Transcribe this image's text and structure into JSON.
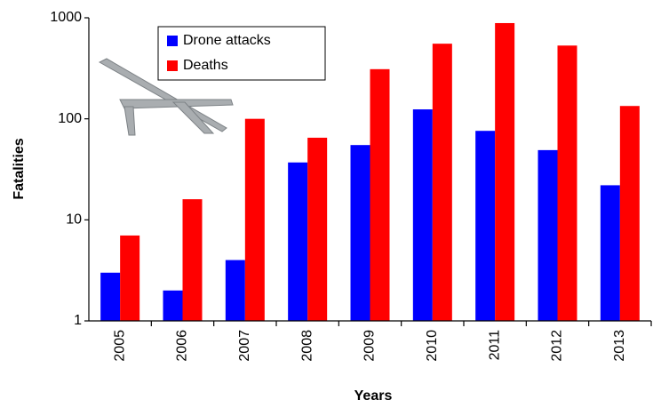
{
  "chart_data": {
    "type": "bar",
    "x_label": "Years",
    "y_label": "Fatalities",
    "categories": [
      "2005",
      "2006",
      "2007",
      "2008",
      "2009",
      "2010",
      "2011",
      "2012",
      "2013"
    ],
    "series": [
      {
        "name": "Drone attacks",
        "color": "#0000ff",
        "values": [
          3,
          2,
          4,
          37,
          55,
          124,
          76,
          49,
          22
        ]
      },
      {
        "name": "Deaths",
        "color": "#ff0000",
        "values": [
          7,
          16,
          100,
          65,
          310,
          554,
          886,
          531,
          134
        ]
      }
    ],
    "log_scale": true,
    "ylim": [
      1,
      1000
    ],
    "yticks": [
      1,
      10,
      100,
      1000
    ],
    "legend_position": "upper-left"
  }
}
